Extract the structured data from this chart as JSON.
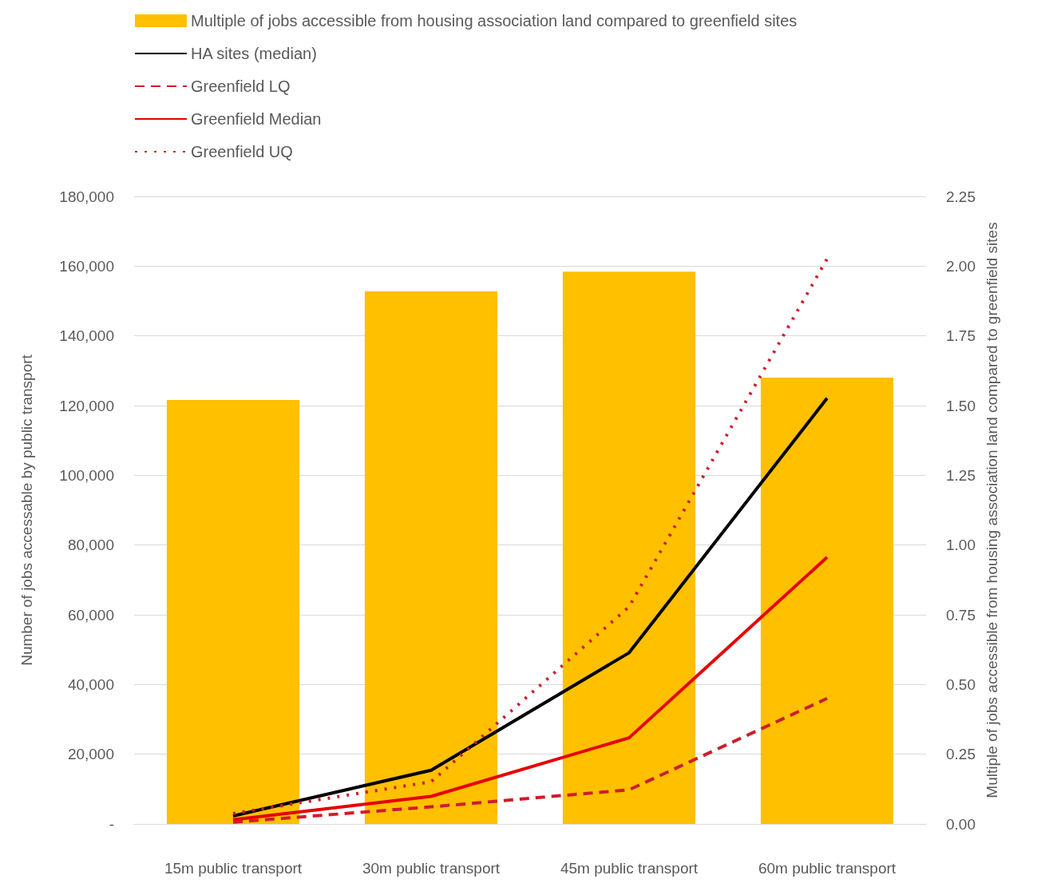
{
  "chart_data": {
    "type": "bar",
    "categories": [
      "15m public transport",
      "30m public transport",
      "45m public transport",
      "60m public transport"
    ],
    "ylabel": "Number of jobs accessable by public transport",
    "y2label": "Multiple of jobs accessible from housing association land compared to greenfield sites",
    "ylim": [
      0,
      180000
    ],
    "yticks": [
      {
        "value": 0,
        "label": "-"
      },
      {
        "value": 20000,
        "label": "20,000"
      },
      {
        "value": 40000,
        "label": "40,000"
      },
      {
        "value": 60000,
        "label": "60,000"
      },
      {
        "value": 80000,
        "label": "80,000"
      },
      {
        "value": 100000,
        "label": "100,000"
      },
      {
        "value": 120000,
        "label": "120,000"
      },
      {
        "value": 140000,
        "label": "140,000"
      },
      {
        "value": 160000,
        "label": "160,000"
      },
      {
        "value": 180000,
        "label": "180,000"
      }
    ],
    "y2lim": [
      0,
      2.25
    ],
    "y2ticks": [
      {
        "value": 0,
        "label": "0.00"
      },
      0.25,
      {
        "value": 0.5,
        "label": "0.50"
      },
      0.75,
      {
        "value": 1,
        "label": "1.00"
      },
      1.25,
      {
        "value": 1.5,
        "label": "1.50"
      },
      1.75,
      {
        "value": 2,
        "label": "2.00"
      },
      2.25
    ],
    "grid": "y",
    "legend": "top left",
    "marker": "none",
    "series": [
      {
        "name": "Multiple of jobs accessible from housing association land compared to greenfield sites",
        "axis": "y2",
        "color": "#ffc000",
        "values": [
          1.52,
          1.91,
          1.98,
          1.6
        ]
      },
      {
        "name": "HA sites (median)",
        "type": "line",
        "color": "#000000",
        "line_style": "solid",
        "values": [
          2300,
          15400,
          49100,
          122100
        ]
      },
      {
        "name": "Greenfield LQ",
        "type": "line",
        "color": "#cc1f2b",
        "line_style": "dashed",
        "values": [
          500,
          4900,
          9800,
          36000
        ]
      },
      {
        "name": "Greenfield Median",
        "type": "line",
        "color": "#e60000",
        "line_style": "solid",
        "values": [
          1200,
          7900,
          24700,
          76500
        ]
      },
      {
        "name": "Greenfield UQ",
        "type": "line",
        "color": "#cc1f2b",
        "line_style": "dotted",
        "values": [
          3000,
          12100,
          62300,
          162100
        ]
      }
    ]
  }
}
